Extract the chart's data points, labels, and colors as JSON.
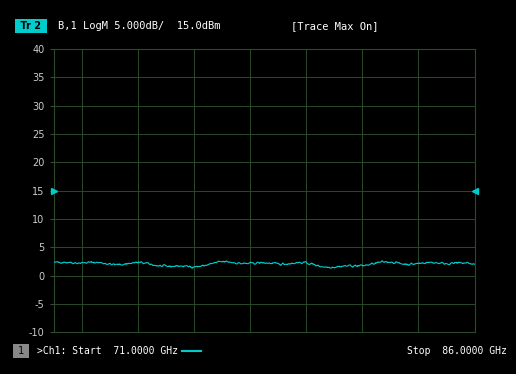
{
  "background_color": "#000000",
  "plot_bg_color": "#000000",
  "grid_color": "#2a4a2a",
  "line_color": "#00cccc",
  "title_text": "B,1 LogM 5.000dB/  15.0dBm",
  "trace_label": "Tr 2",
  "trace_label_bg": "#00cccc",
  "right_label": "[Trace Max On]",
  "bottom_left": "1",
  "bottom_ch": ">Ch1: Start  71.0000 GHz",
  "bottom_right": "Stop  86.0000 GHz",
  "xmin": 71.0,
  "xmax": 86.0,
  "ymin": -10,
  "ymax": 40,
  "yticks": [
    -10,
    -5,
    0,
    5,
    10,
    15,
    20,
    25,
    30,
    35,
    40
  ],
  "ref_level": 15,
  "signal_mean": 2.0,
  "num_points": 800,
  "marker_left_color": "#00cccc",
  "marker_right_color": "#00cccc",
  "text_color": "#cccccc",
  "label_color": "#ffffff"
}
